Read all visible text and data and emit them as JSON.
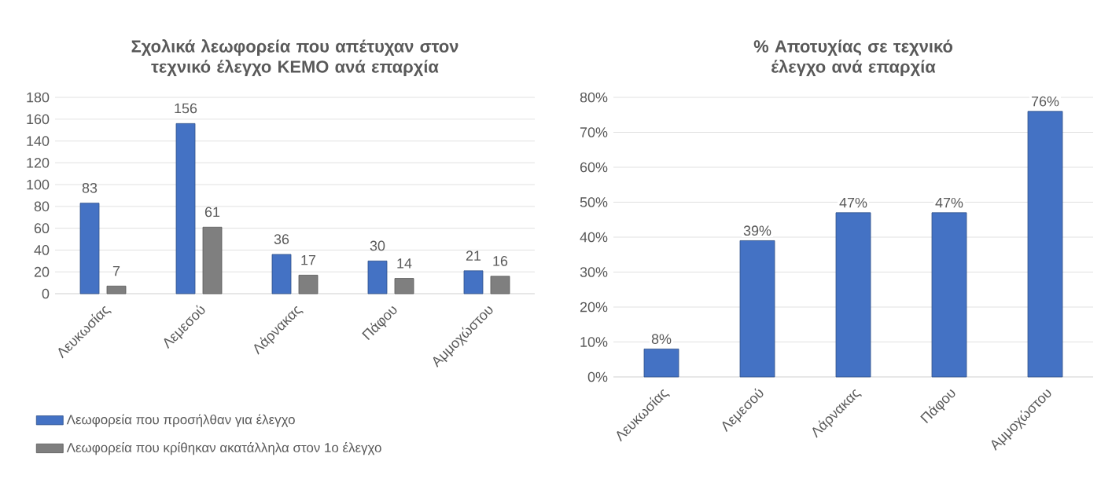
{
  "chart_data": [
    {
      "type": "bar",
      "title": "Σχολικά λεωφορεία που απέτυχαν στον τεχνικό έλεγχο ΚΕΜΟ ανά επαρχία",
      "categories": [
        "Λευκωσίας",
        "Λεμεσού",
        "Λάρνακας",
        "Πάφου",
        "Αμμοχώστου"
      ],
      "series": [
        {
          "name": "Λεωφορεία που προσήλθαν για έλεγχο",
          "color": "#4472c4",
          "values": [
            83,
            156,
            36,
            30,
            21
          ]
        },
        {
          "name": "Λεωφορεία που κρίθηκαν ακατάλληλα στον 1ο έλεγχο",
          "color": "#7f7f7f",
          "values": [
            7,
            61,
            17,
            14,
            16
          ]
        }
      ],
      "ylim": [
        0,
        180
      ],
      "yticks": [
        0,
        20,
        40,
        60,
        80,
        100,
        120,
        140,
        160,
        180
      ],
      "grid": "y",
      "legend": "bottom",
      "data_labels": true
    },
    {
      "type": "bar",
      "title": "% Αποτυχίας σε τεχνικό έλεγχο ανά επαρχία",
      "categories": [
        "Λευκωσίας",
        "Λεμεσού",
        "Λάρνακας",
        "Πάφου",
        "Αμμοχώστου"
      ],
      "values": [
        8,
        39,
        47,
        47,
        76
      ],
      "color": "#4472c4",
      "value_labels": [
        "8%",
        "39%",
        "47%",
        "47%",
        "76%"
      ],
      "ylim": [
        0,
        80
      ],
      "yticks": [
        {
          "value": 0,
          "label": "0%"
        },
        {
          "value": 10,
          "label": "10%"
        },
        {
          "value": 20,
          "label": "20%"
        },
        {
          "value": 30,
          "label": "30%"
        },
        {
          "value": 40,
          "label": "40%"
        },
        {
          "value": 50,
          "label": "50%"
        },
        {
          "value": 60,
          "label": "60%"
        },
        {
          "value": 70,
          "label": "70%"
        },
        {
          "value": 80,
          "label": "80%"
        }
      ],
      "grid": "y"
    }
  ]
}
